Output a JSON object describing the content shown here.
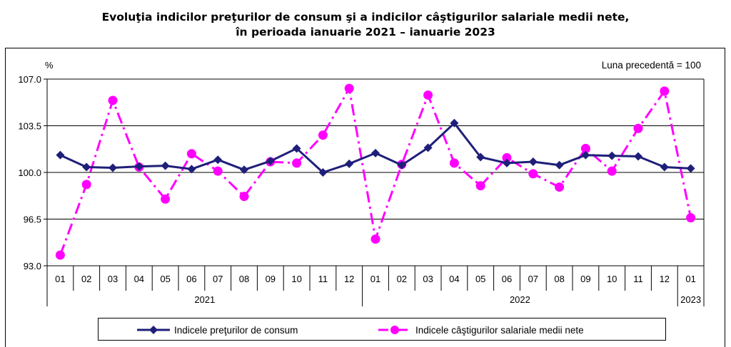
{
  "title": {
    "line1": "Evoluţia indicilor preţurilor de consum şi a indicilor câştigurilor salariale medii nete,",
    "line2": "în perioada ianuarie 2021 – ianuarie 2023"
  },
  "chart_data": {
    "type": "line",
    "ylabel": "%",
    "note": "Luna precedentă = 100",
    "ylim": [
      93.0,
      107.0
    ],
    "yticks": [
      "93.0",
      "96.5",
      "100.0",
      "103.5",
      "107.0"
    ],
    "categories": [
      "01",
      "02",
      "03",
      "04",
      "05",
      "06",
      "07",
      "08",
      "09",
      "10",
      "11",
      "12",
      "01",
      "02",
      "03",
      "04",
      "05",
      "06",
      "07",
      "08",
      "09",
      "10",
      "11",
      "12",
      "01"
    ],
    "years": [
      {
        "label": "2021",
        "start": 0,
        "end": 11
      },
      {
        "label": "2022",
        "start": 12,
        "end": 23
      },
      {
        "label": "2023",
        "start": 24,
        "end": 24
      }
    ],
    "grid": true,
    "legend_position": "bottom",
    "series": [
      {
        "name": "Indicele preţurilor de consum",
        "color": "#1f1f7a",
        "style": "solid-diamond",
        "values": [
          101.3,
          100.4,
          100.35,
          100.45,
          100.5,
          100.25,
          100.95,
          100.2,
          100.85,
          101.8,
          100.0,
          100.65,
          101.45,
          100.55,
          101.85,
          103.7,
          101.15,
          100.7,
          100.8,
          100.55,
          101.3,
          101.25,
          101.2,
          100.4,
          100.3
        ]
      },
      {
        "name": "Indicele câştigurilor salariale medii nete",
        "color": "#ff00ff",
        "style": "dashdot-circle",
        "values": [
          93.8,
          99.1,
          105.4,
          100.4,
          98.0,
          101.4,
          100.1,
          98.2,
          100.8,
          100.7,
          102.8,
          106.3,
          95.0,
          100.6,
          105.8,
          100.7,
          99.0,
          101.1,
          99.9,
          98.9,
          101.8,
          100.1,
          103.3,
          106.1,
          96.6
        ]
      }
    ]
  }
}
